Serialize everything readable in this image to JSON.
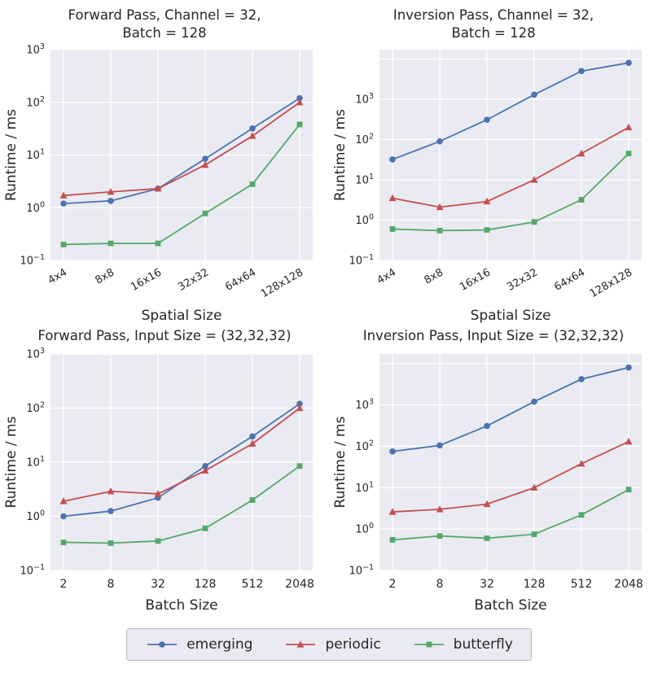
{
  "style": {
    "plot_bg": "#eaeaf2",
    "grid_color": "#ffffff",
    "text_color": "#262626",
    "series_colors": {
      "emerging": "#4c72b0",
      "periodic": "#c44e52",
      "butterfly": "#55a868"
    }
  },
  "legend": {
    "items": [
      {
        "label": "emerging",
        "series": "emerging",
        "marker": "circle"
      },
      {
        "label": "periodic",
        "series": "periodic",
        "marker": "triangle"
      },
      {
        "label": "butterfly",
        "series": "butterfly",
        "marker": "square"
      }
    ]
  },
  "chart_data": [
    {
      "type": "line",
      "title": "Forward Pass, Channel = 32,\nBatch = 128",
      "xlabel": "Spatial Size",
      "ylabel": "Runtime / ms",
      "yscale": "log",
      "ylim": [
        0.1,
        1000
      ],
      "ytick_exponents": [
        -1,
        0,
        1,
        2,
        3
      ],
      "rotate_x_labels": true,
      "grid": true,
      "categories": [
        "4x4",
        "8x8",
        "16x16",
        "32x32",
        "64x64",
        "128x128"
      ],
      "series": [
        {
          "name": "emerging",
          "marker": "circle",
          "values": [
            1.2,
            1.35,
            2.3,
            8.5,
            32,
            120
          ]
        },
        {
          "name": "periodic",
          "marker": "triangle",
          "values": [
            1.7,
            2.0,
            2.3,
            6.5,
            23,
            100
          ]
        },
        {
          "name": "butterfly",
          "marker": "square",
          "values": [
            0.2,
            0.21,
            0.21,
            0.78,
            2.8,
            38
          ]
        }
      ]
    },
    {
      "type": "line",
      "title": "Inversion Pass, Channel = 32,\nBatch = 128",
      "xlabel": "Spatial Size",
      "ylabel": "Runtime / ms",
      "yscale": "log",
      "ylim": [
        0.1,
        17000
      ],
      "ytick_exponents": [
        -1,
        0,
        1,
        2,
        3
      ],
      "rotate_x_labels": true,
      "grid": true,
      "categories": [
        "4x4",
        "8x8",
        "16x16",
        "32x32",
        "64x64",
        "128x128"
      ],
      "series": [
        {
          "name": "emerging",
          "marker": "circle",
          "values": [
            32,
            90,
            310,
            1300,
            5000,
            8000
          ]
        },
        {
          "name": "periodic",
          "marker": "triangle",
          "values": [
            3.5,
            2.1,
            2.9,
            10,
            45,
            200
          ]
        },
        {
          "name": "butterfly",
          "marker": "square",
          "values": [
            0.6,
            0.55,
            0.57,
            0.9,
            3.2,
            45
          ]
        }
      ]
    },
    {
      "type": "line",
      "title": "Forward Pass, Input Size = (32,32,32)",
      "xlabel": "Batch Size",
      "ylabel": "Runtime / ms",
      "yscale": "log",
      "ylim": [
        0.1,
        1000
      ],
      "ytick_exponents": [
        -1,
        0,
        1,
        2,
        3
      ],
      "rotate_x_labels": false,
      "grid": true,
      "categories": [
        "2",
        "8",
        "32",
        "128",
        "512",
        "2048"
      ],
      "series": [
        {
          "name": "emerging",
          "marker": "circle",
          "values": [
            1.0,
            1.25,
            2.2,
            8.5,
            30,
            120
          ]
        },
        {
          "name": "periodic",
          "marker": "triangle",
          "values": [
            1.9,
            2.9,
            2.6,
            7.0,
            22,
            100
          ]
        },
        {
          "name": "butterfly",
          "marker": "square",
          "values": [
            0.33,
            0.32,
            0.35,
            0.6,
            2.0,
            8.5
          ]
        }
      ]
    },
    {
      "type": "line",
      "title": "Inversion Pass, Input Size = (32,32,32)",
      "xlabel": "Batch Size",
      "ylabel": "Runtime / ms",
      "yscale": "log",
      "ylim": [
        0.1,
        17000
      ],
      "ytick_exponents": [
        -1,
        0,
        1,
        2,
        3
      ],
      "rotate_x_labels": false,
      "grid": true,
      "categories": [
        "2",
        "8",
        "32",
        "128",
        "512",
        "2048"
      ],
      "series": [
        {
          "name": "emerging",
          "marker": "circle",
          "values": [
            75,
            105,
            310,
            1200,
            4200,
            8000
          ]
        },
        {
          "name": "periodic",
          "marker": "triangle",
          "values": [
            2.6,
            3.0,
            4.0,
            10,
            38,
            130
          ]
        },
        {
          "name": "butterfly",
          "marker": "square",
          "values": [
            0.55,
            0.68,
            0.6,
            0.75,
            2.2,
            9.0
          ]
        }
      ]
    }
  ]
}
